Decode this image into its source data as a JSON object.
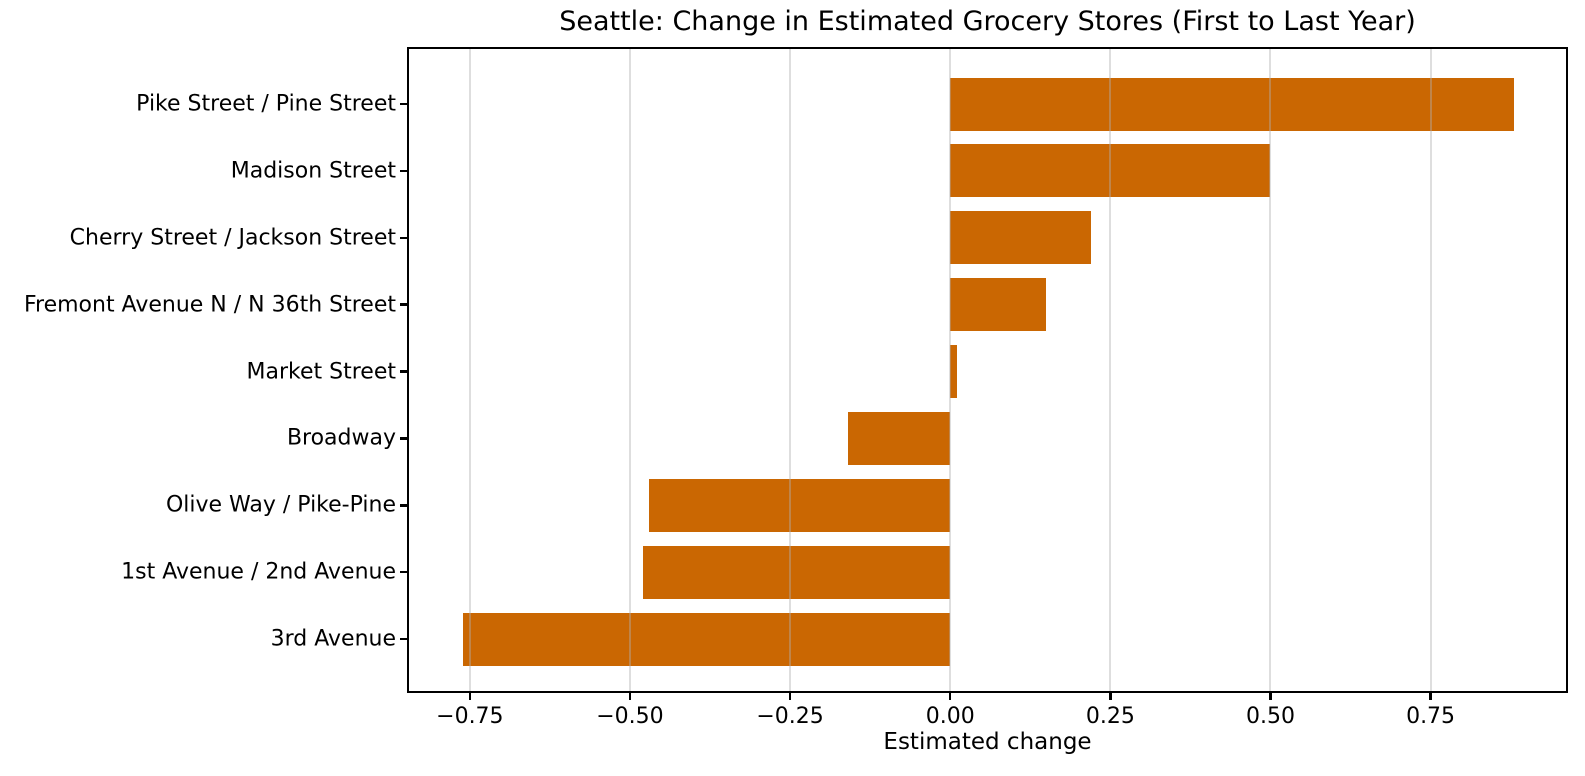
{
  "chart_data": {
    "type": "bar",
    "orientation": "horizontal",
    "title": "Seattle: Change in Estimated Grocery Stores (First to Last Year)",
    "xlabel": "Estimated change",
    "categories": [
      "Pike Street / Pine Street",
      "Madison Street",
      "Cherry Street / Jackson Street",
      "Fremont Avenue N / N 36th Street",
      "Market Street",
      "Broadway",
      "Olive Way / Pike-Pine",
      "1st Avenue / 2nd Avenue",
      "3rd Avenue"
    ],
    "values": [
      0.88,
      0.5,
      0.22,
      0.15,
      0.01,
      -0.16,
      -0.47,
      -0.48,
      -0.76
    ],
    "xticks": [
      -0.75,
      -0.5,
      -0.25,
      0,
      0.25,
      0.5,
      0.75
    ],
    "xtick_labels": [
      "−0.75",
      "−0.50",
      "−0.25",
      "0.00",
      "0.25",
      "0.50",
      "0.75"
    ],
    "xlim": [
      -0.845,
      0.963
    ],
    "bar_color": "#ca6702",
    "grid": "vertical",
    "grid_color": "#b0b0b0",
    "spine_color": "#000000",
    "background_color": "#ffffff",
    "legend": "none"
  }
}
